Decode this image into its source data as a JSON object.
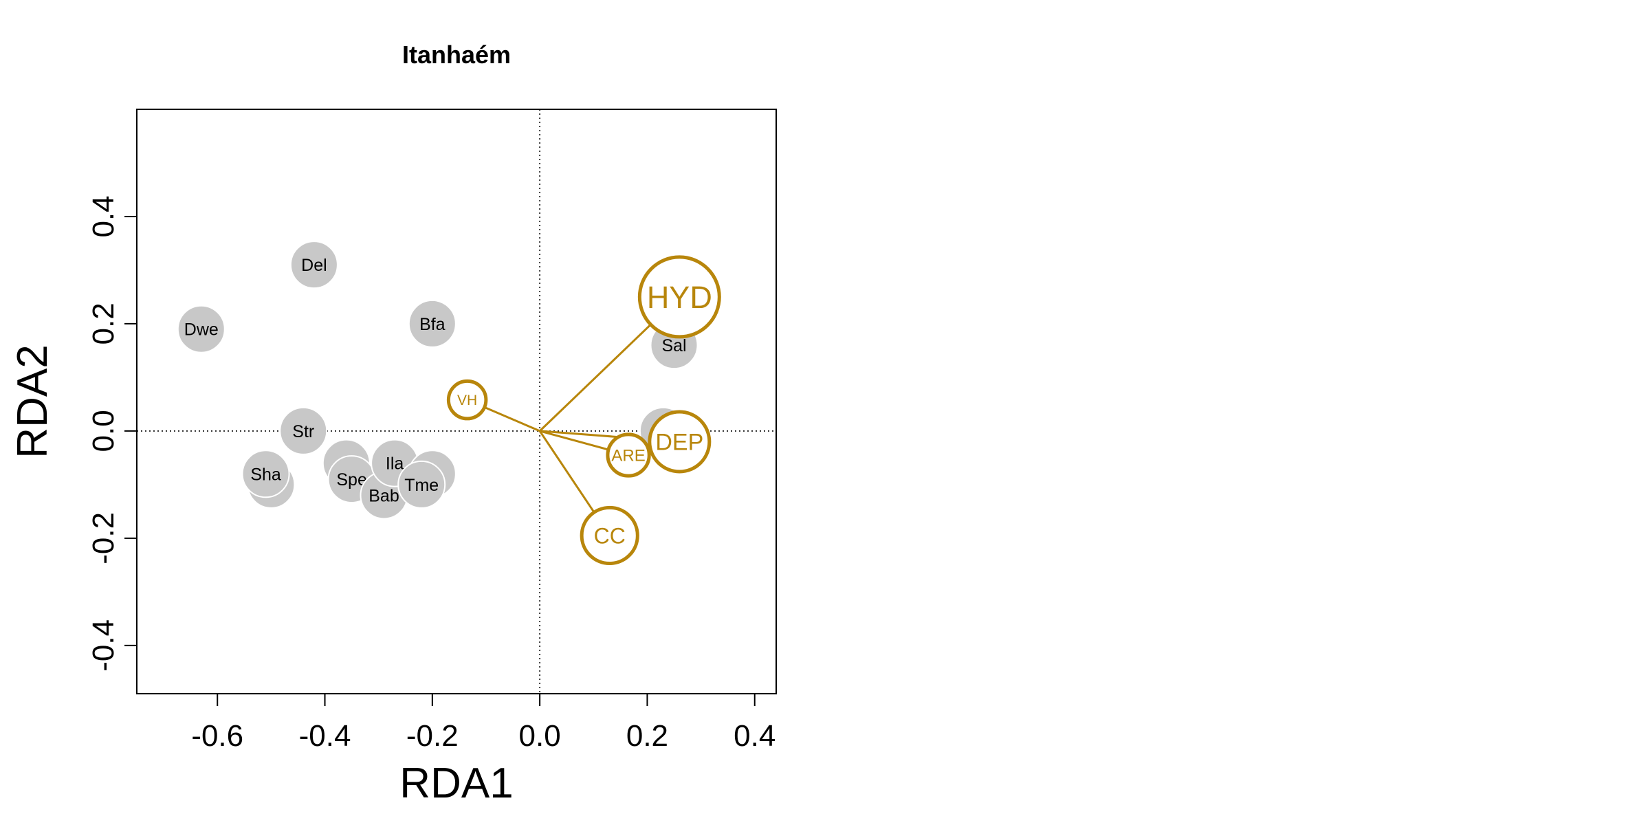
{
  "colors": {
    "species_fill": "#c8c8c8",
    "species_stroke": "#ffffff",
    "env": "#b8860b",
    "axis": "#000000"
  },
  "chart_data": {
    "type": "scatter",
    "title": "Itanhaém",
    "xlabel": "RDA1",
    "ylabel": "RDA2",
    "xlim": [
      -0.75,
      0.44
    ],
    "ylim": [
      -0.49,
      0.6
    ],
    "xticks": [
      -0.6,
      -0.4,
      -0.2,
      0.0,
      0.2,
      0.4
    ],
    "xtick_labels": [
      "-0.6",
      "-0.4",
      "-0.2",
      "0.0",
      "0.2",
      "0.4"
    ],
    "yticks": [
      -0.4,
      -0.2,
      0.0,
      0.2,
      0.4
    ],
    "ytick_labels": [
      "-0.4",
      "-0.2",
      "0.0",
      "0.2",
      "0.4"
    ],
    "grid": false,
    "reference_lines": {
      "x": 0.0,
      "y": 0.0,
      "style": "dotted"
    },
    "species": [
      {
        "label": "Del",
        "x": -0.42,
        "y": 0.31
      },
      {
        "label": "Dwe",
        "x": -0.63,
        "y": 0.19
      },
      {
        "label": "Bfa",
        "x": -0.2,
        "y": 0.2
      },
      {
        "label": "Sal",
        "x": 0.25,
        "y": 0.16
      },
      {
        "label": "",
        "x": 0.23,
        "y": 0.0
      },
      {
        "label": "Str",
        "x": -0.44,
        "y": 0.0
      },
      {
        "label": "",
        "x": -0.5,
        "y": -0.1
      },
      {
        "label": "Sha",
        "x": -0.51,
        "y": -0.08
      },
      {
        "label": "",
        "x": -0.36,
        "y": -0.06
      },
      {
        "label": "Spe",
        "x": -0.35,
        "y": -0.09
      },
      {
        "label": "Bab",
        "x": -0.29,
        "y": -0.12
      },
      {
        "label": "Ila",
        "x": -0.27,
        "y": -0.06
      },
      {
        "label": "",
        "x": -0.2,
        "y": -0.08
      },
      {
        "label": "Tme",
        "x": -0.22,
        "y": -0.1
      }
    ],
    "env_vectors": [
      {
        "label": "HYD",
        "x": 0.26,
        "y": 0.25,
        "size": 1.0
      },
      {
        "label": "DEP",
        "x": 0.26,
        "y": -0.02,
        "size": 0.75
      },
      {
        "label": "ARE",
        "x": 0.165,
        "y": -0.045,
        "size": 0.52
      },
      {
        "label": "CC",
        "x": 0.13,
        "y": -0.195,
        "size": 0.7
      },
      {
        "label": "VH",
        "x": -0.135,
        "y": 0.058,
        "size": 0.47
      }
    ]
  }
}
